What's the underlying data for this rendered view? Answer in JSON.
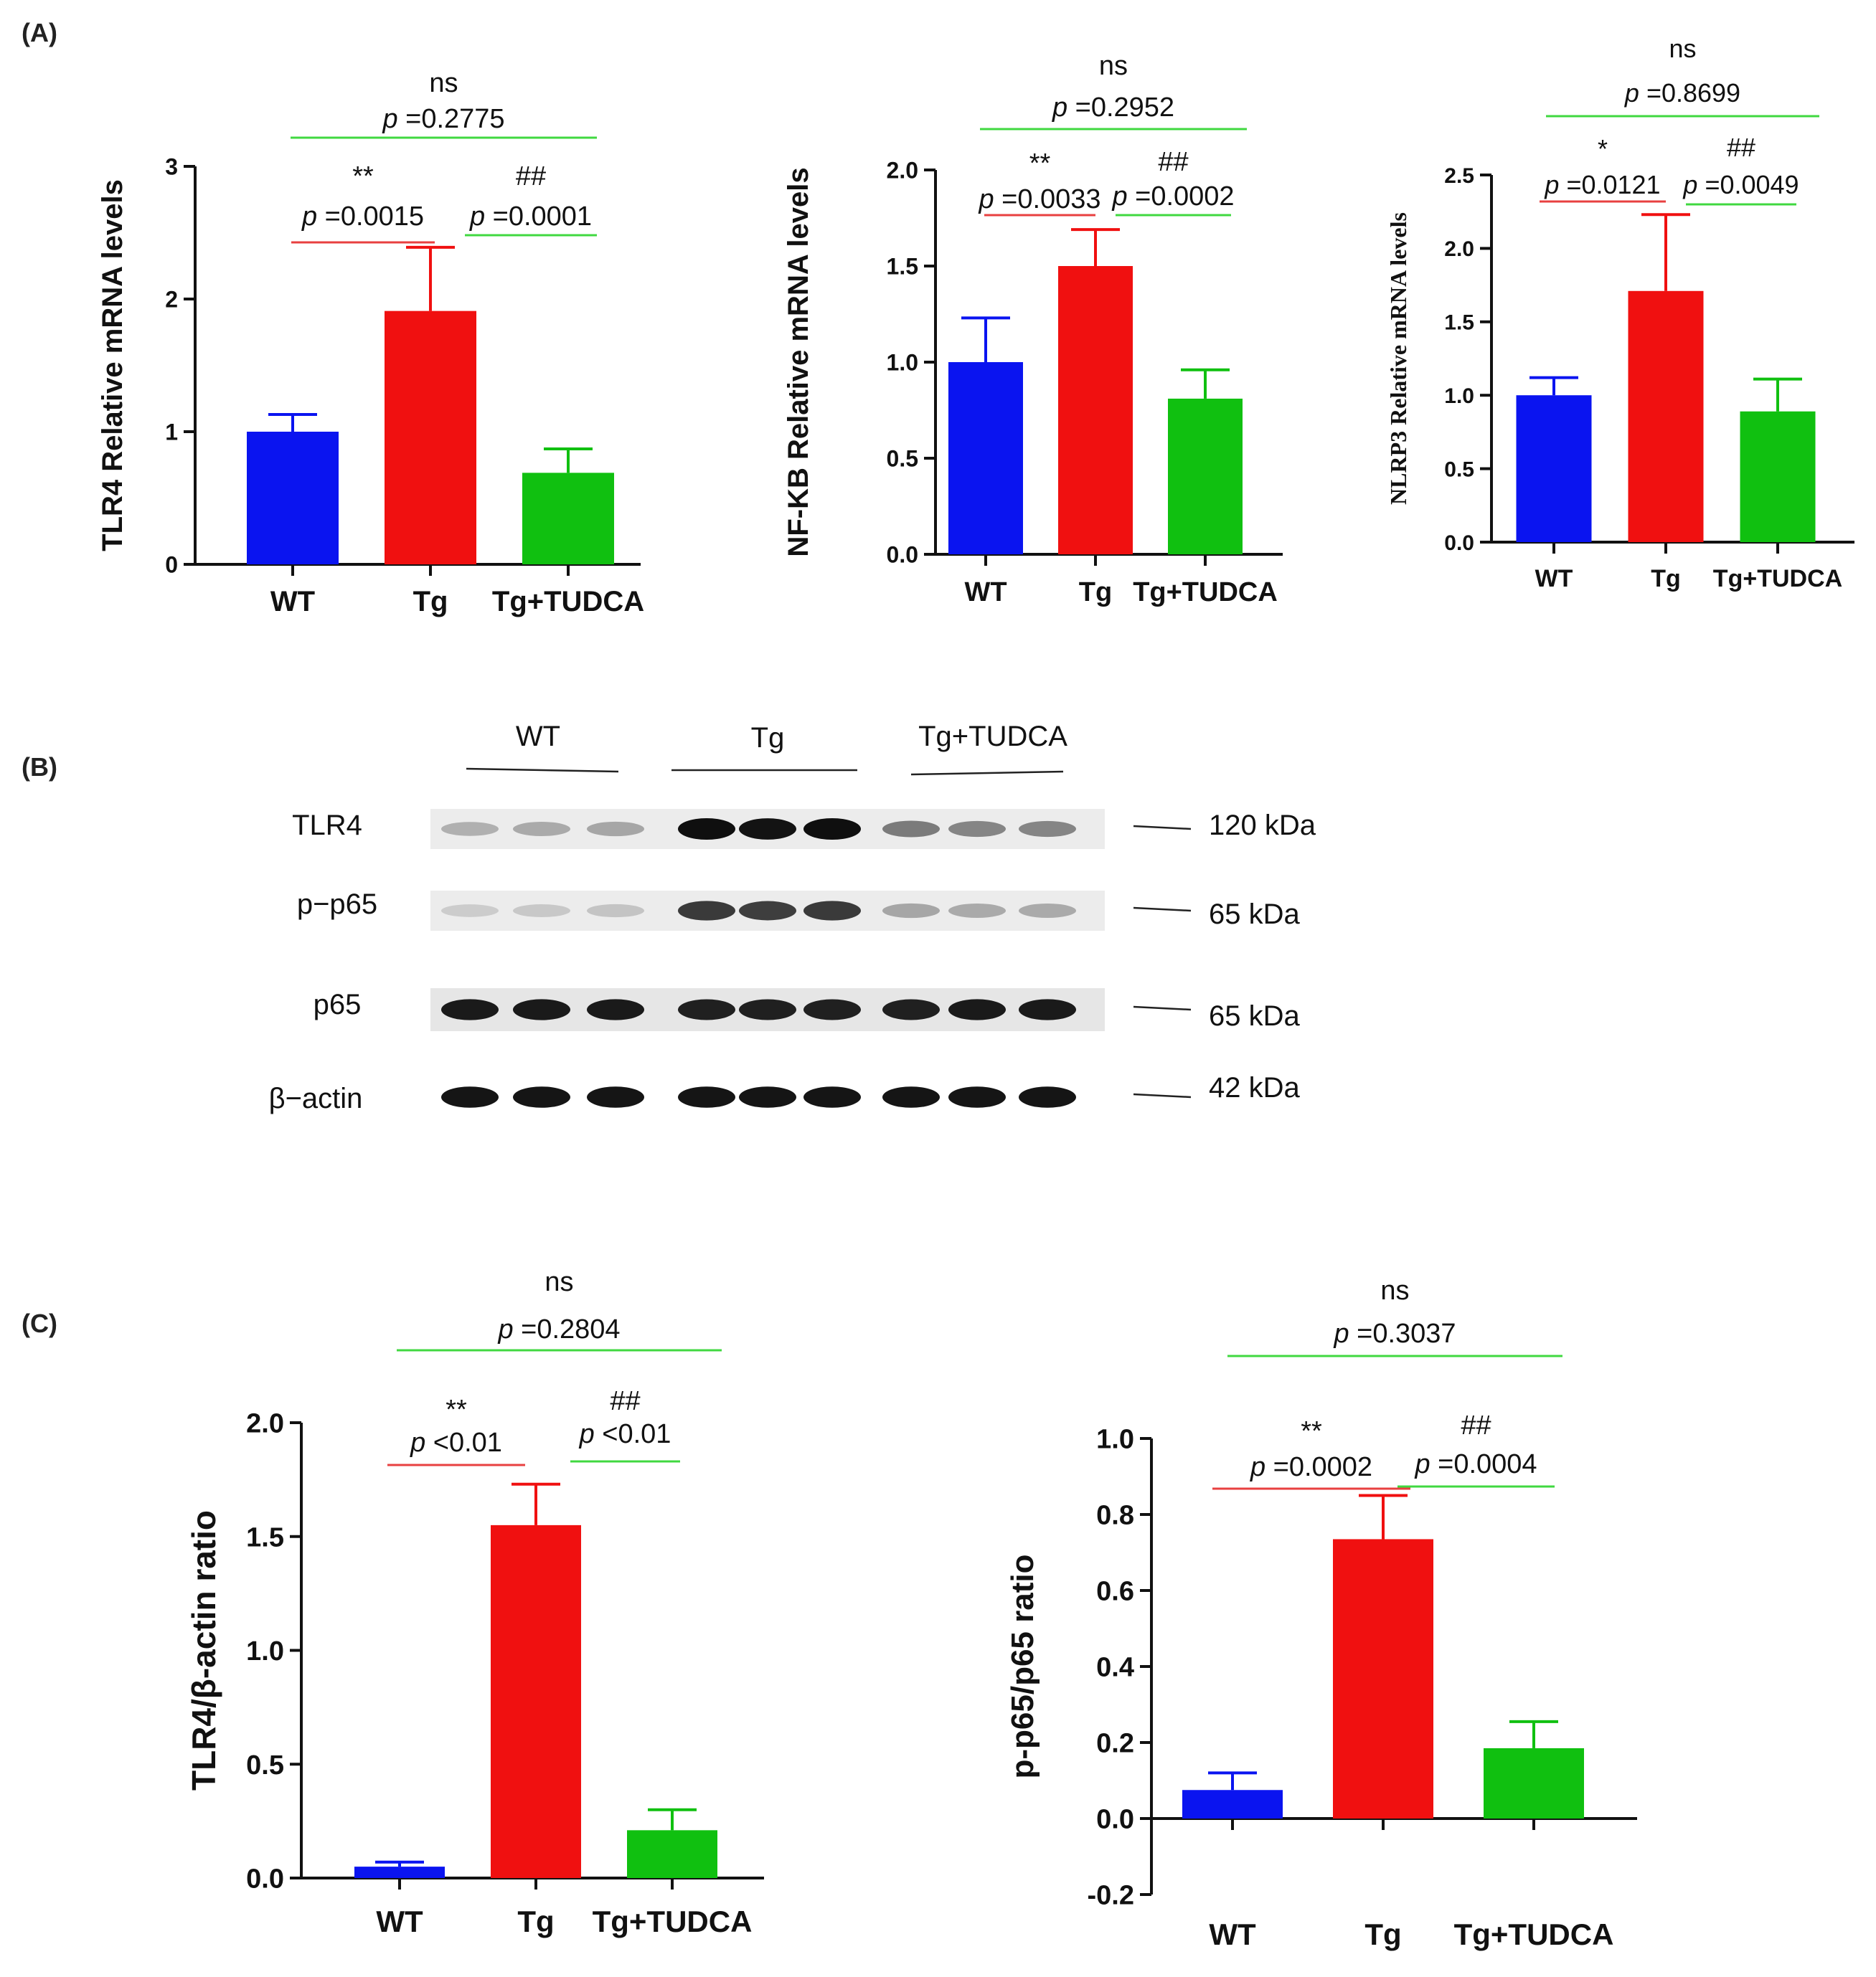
{
  "panels": {
    "a": "(A)",
    "b": "(B)",
    "c": "(C)"
  },
  "colors": {
    "wt": "#0a14f0",
    "tg": "#f01010",
    "tudca": "#10c010",
    "line_red": "#e84040",
    "line_green": "#40d840"
  },
  "chart_data": [
    {
      "type": "bar",
      "panel": "A",
      "categories": [
        "WT",
        "Tg",
        "Tg+TUDCA"
      ],
      "values": [
        1.0,
        1.91,
        0.69
      ],
      "errors": [
        0.13,
        0.48,
        0.18
      ],
      "ylabel": "TLR4 Relative mRNA levels",
      "ylim": [
        0,
        3
      ],
      "yticks": [
        "0",
        "1",
        "2",
        "3"
      ],
      "annotations": {
        "left_star": "**",
        "left_p": "p =0.0015",
        "right_star": "##",
        "right_p": "p =0.0001",
        "top_star": "ns",
        "top_p": "p =0.2775"
      }
    },
    {
      "type": "bar",
      "panel": "A",
      "categories": [
        "WT",
        "Tg",
        "Tg+TUDCA"
      ],
      "values": [
        1.0,
        1.5,
        0.81
      ],
      "errors": [
        0.23,
        0.19,
        0.15
      ],
      "ylabel": "NF-KB Relative mRNA levels",
      "ylim": [
        0,
        2
      ],
      "yticks": [
        "0.0",
        "0.5",
        "1.0",
        "1.5",
        "2.0"
      ],
      "annotations": {
        "left_star": "**",
        "left_p": "p =0.0033",
        "right_star": "##",
        "right_p": "p =0.0002",
        "top_star": "ns",
        "top_p": "p =0.2952"
      }
    },
    {
      "type": "bar",
      "panel": "A",
      "categories": [
        "WT",
        "Tg",
        "Tg+TUDCA"
      ],
      "values": [
        1.0,
        1.71,
        0.89
      ],
      "errors": [
        0.12,
        0.52,
        0.22
      ],
      "ylabel": "NLRP3 Relative mRNA levels",
      "ylim": [
        0,
        2.5
      ],
      "yticks": [
        "0.0",
        "0.5",
        "1.0",
        "1.5",
        "2.0",
        "2.5"
      ],
      "annotations": {
        "left_star": "*",
        "left_p": "p =0.0121",
        "right_star": "##",
        "right_p": "p =0.0049",
        "top_star": "ns",
        "top_p": "p =0.8699"
      }
    },
    {
      "type": "bar",
      "panel": "C",
      "categories": [
        "WT",
        "Tg",
        "Tg+TUDCA"
      ],
      "values": [
        0.05,
        1.55,
        0.21
      ],
      "errors": [
        0.02,
        0.18,
        0.09
      ],
      "ylabel": "TLR4/β-actin ratio",
      "ylim": [
        0,
        2
      ],
      "yticks": [
        "0.0",
        "0.5",
        "1.0",
        "1.5",
        "2.0"
      ],
      "annotations": {
        "left_star": "**",
        "left_p": "p <0.01",
        "right_star": "##",
        "right_p": "p <0.01",
        "top_star": "ns",
        "top_p": "p =0.2804"
      }
    },
    {
      "type": "bar",
      "panel": "C",
      "categories": [
        "WT",
        "Tg",
        "Tg+TUDCA"
      ],
      "values": [
        0.075,
        0.735,
        0.185
      ],
      "errors": [
        0.045,
        0.115,
        0.07
      ],
      "ylabel": "p-p65/p65 ratio",
      "ylim": [
        -0.2,
        1.0
      ],
      "yticks": [
        "-0.2",
        "0.0",
        "0.2",
        "0.4",
        "0.6",
        "0.8",
        "1.0"
      ],
      "annotations": {
        "left_star": "**",
        "left_p": "p =0.0002",
        "right_star": "##",
        "right_p": "p =0.0004",
        "top_star": "ns",
        "top_p": "p =0.3037"
      }
    }
  ],
  "western_blot": {
    "groups": [
      "WT",
      "Tg",
      "Tg+TUDCA"
    ],
    "rows": [
      {
        "label": "TLR4",
        "kda": "120 kDa",
        "intensity": [
          0.25,
          0.28,
          0.3,
          1.0,
          0.98,
          1.0,
          0.5,
          0.45,
          0.45
        ]
      },
      {
        "label": "p−p65",
        "kda": "65 kDa",
        "intensity": [
          0.12,
          0.14,
          0.16,
          0.8,
          0.78,
          0.8,
          0.3,
          0.28,
          0.28
        ]
      },
      {
        "label": "p65",
        "kda": "65 kDa",
        "intensity": [
          0.95,
          0.95,
          0.95,
          0.92,
          0.92,
          0.92,
          0.92,
          0.95,
          0.95
        ]
      },
      {
        "label": "β−actin",
        "kda": "42 kDa",
        "intensity": [
          0.97,
          0.97,
          0.97,
          0.97,
          0.97,
          0.97,
          0.97,
          0.97,
          0.97
        ]
      }
    ]
  }
}
